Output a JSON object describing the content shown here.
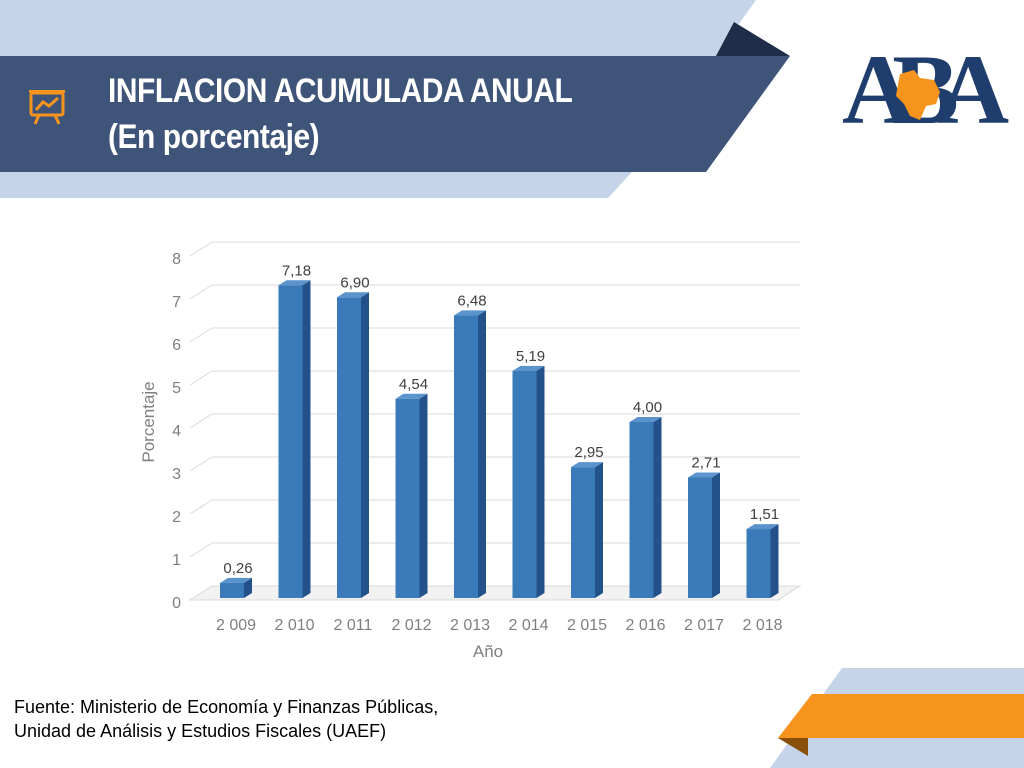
{
  "header": {
    "title_line1": "INFLACION ACUMULADA ANUAL",
    "title_line2": "(En porcentaje)",
    "icon": "presentation-chart-icon"
  },
  "logo": {
    "text": "ABA",
    "icon": "bolivia-map-icon"
  },
  "colors": {
    "banner": "#3e5478",
    "banner_light": "#c5d4e8",
    "accent_orange": "#f7941d",
    "bar_front": "#3a7ab8",
    "bar_side": "#23528a",
    "bar_top": "#5b94cc",
    "logo_navy": "#1f3e6e"
  },
  "chart_data": {
    "type": "bar",
    "categories": [
      "2 009",
      "2 010",
      "2 011",
      "2 012",
      "2 013",
      "2 014",
      "2 015",
      "2 016",
      "2 017",
      "2 018"
    ],
    "values": [
      0.26,
      7.18,
      6.9,
      4.54,
      6.48,
      5.19,
      2.95,
      4.0,
      2.71,
      1.51
    ],
    "value_labels": [
      "0,26",
      "7,18",
      "6,90",
      "4,54",
      "6,48",
      "5,19",
      "2,95",
      "4,00",
      "2,71",
      "1,51"
    ],
    "xlabel": "Año",
    "ylabel": "Porcentaje",
    "ylim": [
      0,
      8
    ],
    "yticks": [
      0,
      1,
      2,
      3,
      4,
      5,
      6,
      7,
      8
    ],
    "grid": true,
    "legend": false,
    "style": "3d-column"
  },
  "footer": {
    "source_line1": "Fuente: Ministerio de Economía y Finanzas Públicas,",
    "source_line2": "Unidad de Análisis y Estudios Fiscales (UAEF)"
  }
}
